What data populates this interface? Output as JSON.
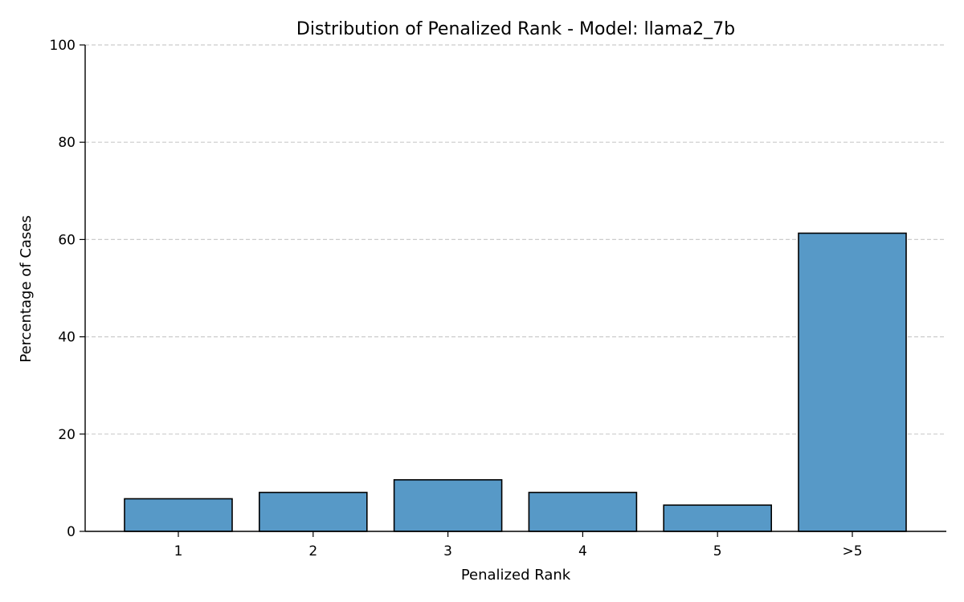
{
  "chart_data": {
    "type": "bar",
    "title": "Distribution of Penalized Rank - Model: llama2_7b",
    "xlabel": "Penalized Rank",
    "ylabel": "Percentage of Cases",
    "categories": [
      "1",
      "2",
      "3",
      "4",
      "5",
      ">5"
    ],
    "values": [
      6.7,
      8.0,
      10.6,
      8.0,
      5.4,
      61.3
    ],
    "ylim": [
      0,
      100
    ],
    "yticks": [
      0,
      20,
      40,
      60,
      80,
      100
    ],
    "grid": "y-dashed",
    "legend": "none",
    "bar_color": "#5799c7",
    "edge_color": "#000000"
  }
}
